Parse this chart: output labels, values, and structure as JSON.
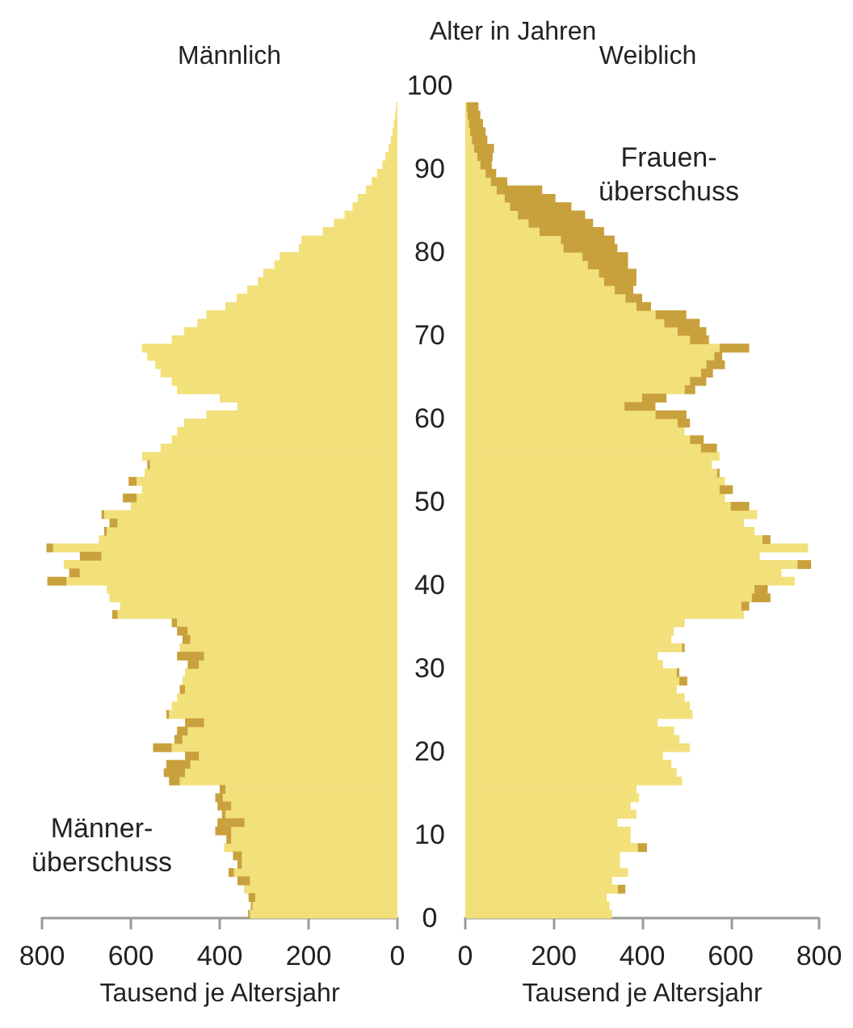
{
  "chart_data": [
    {
      "type": "bar",
      "orientation": "horizontal",
      "stacked": true,
      "title": "Männlich",
      "xlabel": "Tausend je Altersjahr",
      "tick_labels": "x",
      "x": [
        0,
        1,
        2,
        3,
        4,
        5,
        6,
        7,
        8,
        9,
        10,
        11,
        12,
        13,
        14,
        15,
        16,
        17,
        18,
        19,
        20,
        21,
        22,
        23,
        24,
        25,
        26,
        27,
        28,
        29,
        30,
        31,
        32,
        33,
        34,
        35,
        36,
        37,
        38,
        39,
        40,
        41,
        42,
        43,
        44,
        45,
        46,
        47,
        48,
        49,
        50,
        51,
        52,
        53,
        54,
        55,
        56,
        57,
        58,
        59,
        60,
        61,
        62,
        63,
        64,
        65,
        66,
        67,
        68,
        69,
        70,
        71,
        72,
        73,
        74,
        75,
        76,
        77,
        78,
        79,
        80,
        81,
        82,
        83,
        84,
        85,
        86,
        87,
        88,
        89,
        90,
        91,
        92,
        93,
        94,
        95,
        96,
        97
      ],
      "xlim": [
        800,
        0
      ],
      "xticks": [
        800,
        600,
        400,
        200,
        0
      ],
      "ylim": [
        0,
        100
      ],
      "yticks": [
        0,
        10,
        20,
        30,
        40,
        50,
        60,
        70,
        80,
        90,
        100
      ],
      "series": [
        {
          "color": "#f2e07a",
          "values": [
            332,
            326,
            320,
            345,
            332,
            368,
            350,
            350,
            390,
            374,
            374,
            344,
            387,
            374,
            393,
            387,
            490,
            478,
            466,
            447,
            508,
            484,
            472,
            435,
            514,
            508,
            496,
            478,
            484,
            478,
            447,
            435,
            490,
            466,
            472,
            496,
            630,
            624,
            648,
            654,
            745,
            715,
            751,
            666,
            775,
            672,
            654,
            630,
            660,
            600,
            587,
            575,
            587,
            569,
            557,
            575,
            533,
            508,
            496,
            480,
            430,
            360,
            400,
            496,
            508,
            533,
            545,
            563,
            575,
            508,
            480,
            450,
            430,
            387,
            362,
            338,
            314,
            302,
            277,
            265,
            222,
            216,
            168,
            143,
            119,
            101,
            89,
            71,
            58,
            46,
            34,
            27,
            20,
            15,
            11,
            8,
            5,
            3
          ]
        },
        {
          "color": "#c9a13c",
          "values": [
            4,
            4,
            15,
            null,
            28,
            12,
            10,
            20,
            null,
            11,
            36,
            61,
            8,
            31,
            17,
            13,
            24,
            48,
            54,
            31,
            42,
            18,
            24,
            43,
            6,
            null,
            null,
            12,
            null,
            null,
            25,
            61,
            null,
            18,
            24,
            12,
            12,
            null,
            null,
            null,
            43,
            24,
            null,
            49,
            15,
            null,
            6,
            18,
            6,
            null,
            31,
            null,
            18,
            null,
            6,
            null,
            null,
            null,
            null,
            null,
            null,
            null,
            null,
            null,
            null,
            null,
            null,
            null,
            null,
            null,
            null,
            null,
            null,
            null,
            null,
            null,
            null,
            null,
            null,
            null,
            null,
            null,
            null,
            null,
            null,
            null,
            null,
            null,
            null,
            null,
            null,
            null,
            null,
            null,
            null,
            null,
            null,
            null
          ]
        }
      ],
      "annotations": [
        "Männer-\nüberschuss"
      ]
    },
    {
      "type": "bar",
      "orientation": "horizontal",
      "stacked": true,
      "title": "Weiblich",
      "xlabel": "Tausend je Altersjahr",
      "ylabel": "Alter in Jahren",
      "x": [
        0,
        1,
        2,
        3,
        4,
        5,
        6,
        7,
        8,
        9,
        10,
        11,
        12,
        13,
        14,
        15,
        16,
        17,
        18,
        19,
        20,
        21,
        22,
        23,
        24,
        25,
        26,
        27,
        28,
        29,
        30,
        31,
        32,
        33,
        34,
        35,
        36,
        37,
        38,
        39,
        40,
        41,
        42,
        43,
        44,
        45,
        46,
        47,
        48,
        49,
        50,
        51,
        52,
        53,
        54,
        55,
        56,
        57,
        58,
        59,
        60,
        61,
        62,
        63,
        64,
        65,
        66,
        67,
        68,
        69,
        70,
        71,
        72,
        73,
        74,
        75,
        76,
        77,
        78,
        79,
        80,
        81,
        82,
        83,
        84,
        85,
        86,
        87,
        88,
        89,
        90,
        91,
        92,
        93,
        94,
        95,
        96,
        97
      ],
      "xlim": [
        0,
        800
      ],
      "xticks": [
        0,
        200,
        400,
        600,
        800
      ],
      "ylim": [
        0,
        100
      ],
      "yticks": [
        0,
        10,
        20,
        30,
        40,
        50,
        60,
        70,
        80,
        90,
        100
      ],
      "series": [
        {
          "color": "#f2e07a",
          "values": [
            332,
            326,
            320,
            345,
            332,
            368,
            350,
            350,
            390,
            374,
            374,
            344,
            387,
            374,
            393,
            387,
            490,
            478,
            466,
            447,
            508,
            484,
            472,
            435,
            514,
            508,
            496,
            478,
            484,
            478,
            447,
            435,
            490,
            466,
            472,
            496,
            630,
            624,
            648,
            654,
            745,
            715,
            751,
            666,
            775,
            672,
            654,
            630,
            660,
            600,
            587,
            575,
            587,
            569,
            557,
            575,
            533,
            508,
            496,
            480,
            430,
            360,
            400,
            496,
            508,
            533,
            545,
            563,
            575,
            508,
            480,
            450,
            430,
            387,
            362,
            338,
            314,
            302,
            277,
            265,
            222,
            216,
            168,
            143,
            119,
            101,
            89,
            71,
            58,
            46,
            34,
            27,
            20,
            15,
            11,
            8,
            5,
            3
          ]
        },
        {
          "color": "#c9a13c",
          "values": [
            null,
            null,
            null,
            17,
            null,
            null,
            null,
            null,
            21,
            null,
            null,
            null,
            null,
            null,
            null,
            null,
            null,
            null,
            null,
            null,
            null,
            null,
            null,
            null,
            null,
            null,
            null,
            null,
            18,
            6,
            null,
            null,
            6,
            null,
            null,
            null,
            null,
            18,
            42,
            30,
            null,
            null,
            31,
            null,
            null,
            18,
            null,
            null,
            null,
            42,
            null,
            30,
            null,
            6,
            null,
            null,
            36,
            31,
            null,
            28,
            70,
            70,
            55,
            24,
            37,
            27,
            42,
            18,
            67,
            43,
            65,
            80,
            70,
            33,
            38,
            42,
            73,
            85,
            91,
            103,
            122,
            122,
            146,
            146,
            152,
            139,
            115,
            103,
            37,
            24,
            26,
            35,
            45,
            35,
            35,
            32,
            29,
            27
          ]
        }
      ],
      "annotations": [
        "Frauen-\nüberschuss"
      ]
    }
  ]
}
